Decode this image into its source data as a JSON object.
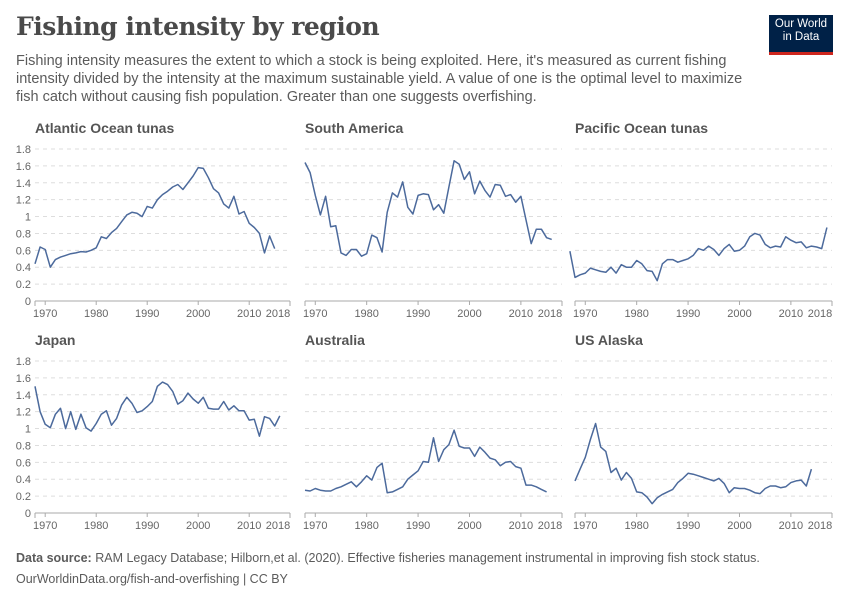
{
  "header": {
    "title": "Fishing intensity by region",
    "subtitle": "Fishing intensity measures the extent to which a stock is being exploited. Here, it's measured as current fishing intensity divided by the intensity at the maximum sustainable yield. A value of one is the optimal level to maximize fish catch without causing fish population. Greater than one suggests overfishing.",
    "logo": "Our World in Data"
  },
  "footer": {
    "source_label": "Data source:",
    "source_text": "RAM Legacy Database; Hilborn,et al. (2020). Effective fisheries management instrumental in improving fish stock status.",
    "url_license": "OurWorldinData.org/fish-and-overfishing | CC BY"
  },
  "colors": {
    "line": "#4c6a9c",
    "logo_bg": "#002147",
    "logo_accent": "#ce261e"
  },
  "chart_data": {
    "type": "line",
    "layout": "small-multiples",
    "xlim": [
      1968,
      2018
    ],
    "ylim": [
      0,
      1.8
    ],
    "x_ticks": [
      "1970",
      "1980",
      "1990",
      "2000",
      "2010",
      "2018"
    ],
    "y_ticks": [
      "0",
      "0.2",
      "0.4",
      "0.6",
      "0.8",
      "1",
      "1.2",
      "1.4",
      "1.6",
      "1.8"
    ],
    "grid": true,
    "panels": [
      {
        "title": "Atlantic Ocean tunas",
        "start_year": 1968,
        "values": [
          0.44,
          0.64,
          0.61,
          0.4,
          0.49,
          0.52,
          0.54,
          0.56,
          0.57,
          0.585,
          0.58,
          0.6,
          0.63,
          0.76,
          0.74,
          0.81,
          0.86,
          0.94,
          1.02,
          1.05,
          1.04,
          1.0,
          1.12,
          1.1,
          1.2,
          1.26,
          1.3,
          1.35,
          1.38,
          1.32,
          1.4,
          1.48,
          1.58,
          1.57,
          1.46,
          1.33,
          1.28,
          1.15,
          1.1,
          1.24,
          1.03,
          1.06,
          0.92,
          0.87,
          0.8,
          0.57,
          0.77,
          0.62
        ]
      },
      {
        "title": "South America",
        "start_year": 1968,
        "values": [
          1.64,
          1.52,
          1.25,
          1.02,
          1.24,
          0.88,
          0.89,
          0.57,
          0.54,
          0.61,
          0.61,
          0.53,
          0.56,
          0.78,
          0.75,
          0.58,
          1.05,
          1.28,
          1.23,
          1.41,
          1.11,
          1.03,
          1.25,
          1.27,
          1.26,
          1.08,
          1.14,
          1.04,
          1.35,
          1.66,
          1.62,
          1.44,
          1.53,
          1.27,
          1.42,
          1.31,
          1.23,
          1.38,
          1.37,
          1.24,
          1.26,
          1.17,
          1.24,
          0.96,
          0.68,
          0.85,
          0.85,
          0.75,
          0.73
        ]
      },
      {
        "title": "Pacific Ocean tunas",
        "start_year": 1967,
        "values": [
          0.59,
          0.28,
          0.31,
          0.33,
          0.39,
          0.37,
          0.35,
          0.34,
          0.4,
          0.33,
          0.43,
          0.4,
          0.4,
          0.48,
          0.44,
          0.36,
          0.35,
          0.24,
          0.44,
          0.49,
          0.49,
          0.46,
          0.48,
          0.5,
          0.54,
          0.62,
          0.6,
          0.65,
          0.61,
          0.54,
          0.62,
          0.67,
          0.59,
          0.6,
          0.65,
          0.76,
          0.8,
          0.78,
          0.67,
          0.63,
          0.65,
          0.64,
          0.76,
          0.72,
          0.69,
          0.7,
          0.63,
          0.65,
          0.64,
          0.62,
          0.87
        ]
      },
      {
        "title": "Japan",
        "start_year": 1968,
        "values": [
          1.5,
          1.2,
          1.05,
          1.01,
          1.17,
          1.24,
          1.0,
          1.2,
          0.99,
          1.17,
          1.01,
          0.97,
          1.06,
          1.17,
          1.21,
          1.04,
          1.12,
          1.28,
          1.37,
          1.3,
          1.19,
          1.21,
          1.26,
          1.32,
          1.5,
          1.55,
          1.52,
          1.44,
          1.29,
          1.33,
          1.42,
          1.35,
          1.3,
          1.37,
          1.24,
          1.23,
          1.23,
          1.32,
          1.22,
          1.27,
          1.21,
          1.21,
          1.1,
          1.11,
          0.91,
          1.14,
          1.12,
          1.03,
          1.15
        ]
      },
      {
        "title": "Australia",
        "start_year": 1968,
        "values": [
          0.27,
          0.26,
          0.29,
          0.27,
          0.26,
          0.26,
          0.29,
          0.31,
          0.34,
          0.37,
          0.31,
          0.37,
          0.44,
          0.39,
          0.54,
          0.59,
          0.24,
          0.25,
          0.28,
          0.31,
          0.4,
          0.45,
          0.5,
          0.61,
          0.6,
          0.89,
          0.61,
          0.75,
          0.81,
          0.98,
          0.79,
          0.77,
          0.77,
          0.67,
          0.78,
          0.72,
          0.65,
          0.63,
          0.56,
          0.6,
          0.61,
          0.55,
          0.53,
          0.33,
          0.33,
          0.31,
          0.28,
          0.25
        ]
      },
      {
        "title": "US Alaska",
        "start_year": 1968,
        "values": [
          0.38,
          0.52,
          0.66,
          0.87,
          1.06,
          0.78,
          0.73,
          0.48,
          0.53,
          0.39,
          0.48,
          0.41,
          0.25,
          0.24,
          0.19,
          0.11,
          0.18,
          0.22,
          0.25,
          0.28,
          0.36,
          0.41,
          0.47,
          0.46,
          0.44,
          0.42,
          0.4,
          0.38,
          0.41,
          0.35,
          0.24,
          0.3,
          0.29,
          0.29,
          0.27,
          0.24,
          0.23,
          0.29,
          0.32,
          0.32,
          0.3,
          0.31,
          0.36,
          0.38,
          0.39,
          0.32,
          0.52
        ]
      }
    ]
  }
}
